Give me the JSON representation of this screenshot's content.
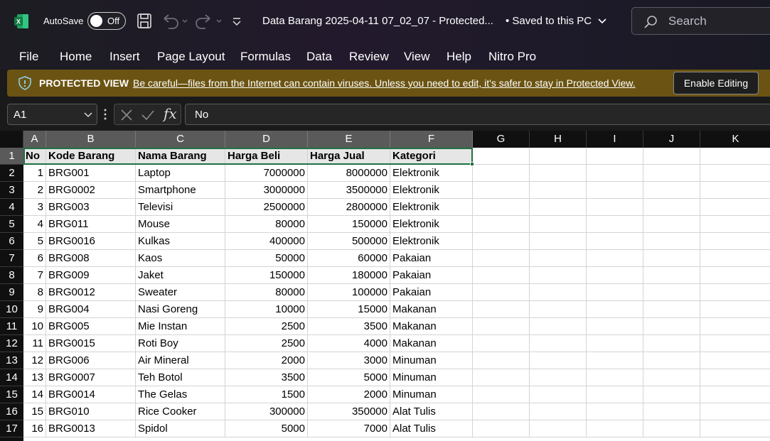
{
  "titlebar": {
    "autosave_label": "AutoSave",
    "toggle_state": "Off",
    "doc_title": "Data Barang 2025-04-11 07_02_07  -  Protected...",
    "saved_status": "• Saved to this PC",
    "search_placeholder": "Search"
  },
  "menu": [
    "File",
    "Home",
    "Insert",
    "Page Layout",
    "Formulas",
    "Data",
    "Review",
    "View",
    "Help",
    "Nitro Pro"
  ],
  "protected_view": {
    "title": "PROTECTED VIEW",
    "message": "Be careful—files from the Internet can contain viruses. Unless you need to edit, it's safer to stay in Protected View.",
    "enable_button": "Enable Editing"
  },
  "formula_bar": {
    "name_box": "A1",
    "fx": "fx",
    "content": "No"
  },
  "columns": [
    "A",
    "B",
    "C",
    "D",
    "E",
    "F",
    "G",
    "H",
    "I",
    "J",
    "K"
  ],
  "rows": [
    "1",
    "2",
    "3",
    "4",
    "5",
    "6",
    "7",
    "8",
    "9",
    "10",
    "11",
    "12",
    "13",
    "14",
    "15",
    "16",
    "17"
  ],
  "table": {
    "header": [
      "No",
      "Kode Barang",
      "Nama Barang",
      "Harga Beli",
      "Harga Jual",
      "Kategori"
    ],
    "data": [
      [
        "1",
        "BRG001",
        "Laptop",
        "7000000",
        "8000000",
        "Elektronik"
      ],
      [
        "2",
        "BRG0002",
        "Smartphone",
        "3000000",
        "3500000",
        "Elektronik"
      ],
      [
        "3",
        "BRG003",
        "Televisi",
        "2500000",
        "2800000",
        "Elektronik"
      ],
      [
        "4",
        "BRG011",
        "Mouse",
        "80000",
        "150000",
        "Elektronik"
      ],
      [
        "5",
        "BRG0016",
        "Kulkas",
        "400000",
        "500000",
        "Elektronik"
      ],
      [
        "6",
        "BRG008",
        "Kaos",
        "50000",
        "60000",
        "Pakaian"
      ],
      [
        "7",
        "BRG009",
        "Jaket",
        "150000",
        "180000",
        "Pakaian"
      ],
      [
        "8",
        "BRG0012",
        "Sweater",
        "80000",
        "100000",
        "Pakaian"
      ],
      [
        "9",
        "BRG004",
        "Nasi Goreng",
        "10000",
        "15000",
        "Makanan"
      ],
      [
        "10",
        "BRG005",
        "Mie Instan",
        "2500",
        "3500",
        "Makanan"
      ],
      [
        "11",
        "BRG0015",
        "Roti Boy",
        "2500",
        "4000",
        "Makanan"
      ],
      [
        "12",
        "BRG006",
        "Air Mineral",
        "2000",
        "3000",
        "Minuman"
      ],
      [
        "13",
        "BRG0007",
        "Teh Botol",
        "3500",
        "5000",
        "Minuman"
      ],
      [
        "14",
        "BRG0014",
        "The Gelas",
        "1500",
        "2000",
        "Minuman"
      ],
      [
        "15",
        "BRG010",
        "Rice Cooker",
        "300000",
        "350000",
        "Alat Tulis"
      ],
      [
        "16",
        "BRG0013",
        "Spidol",
        "5000",
        "7000",
        "Alat Tulis"
      ]
    ]
  },
  "colors": {
    "excel_green": "#1e7145",
    "protected_bar": "#6b5413",
    "header_bg": "#101010"
  }
}
